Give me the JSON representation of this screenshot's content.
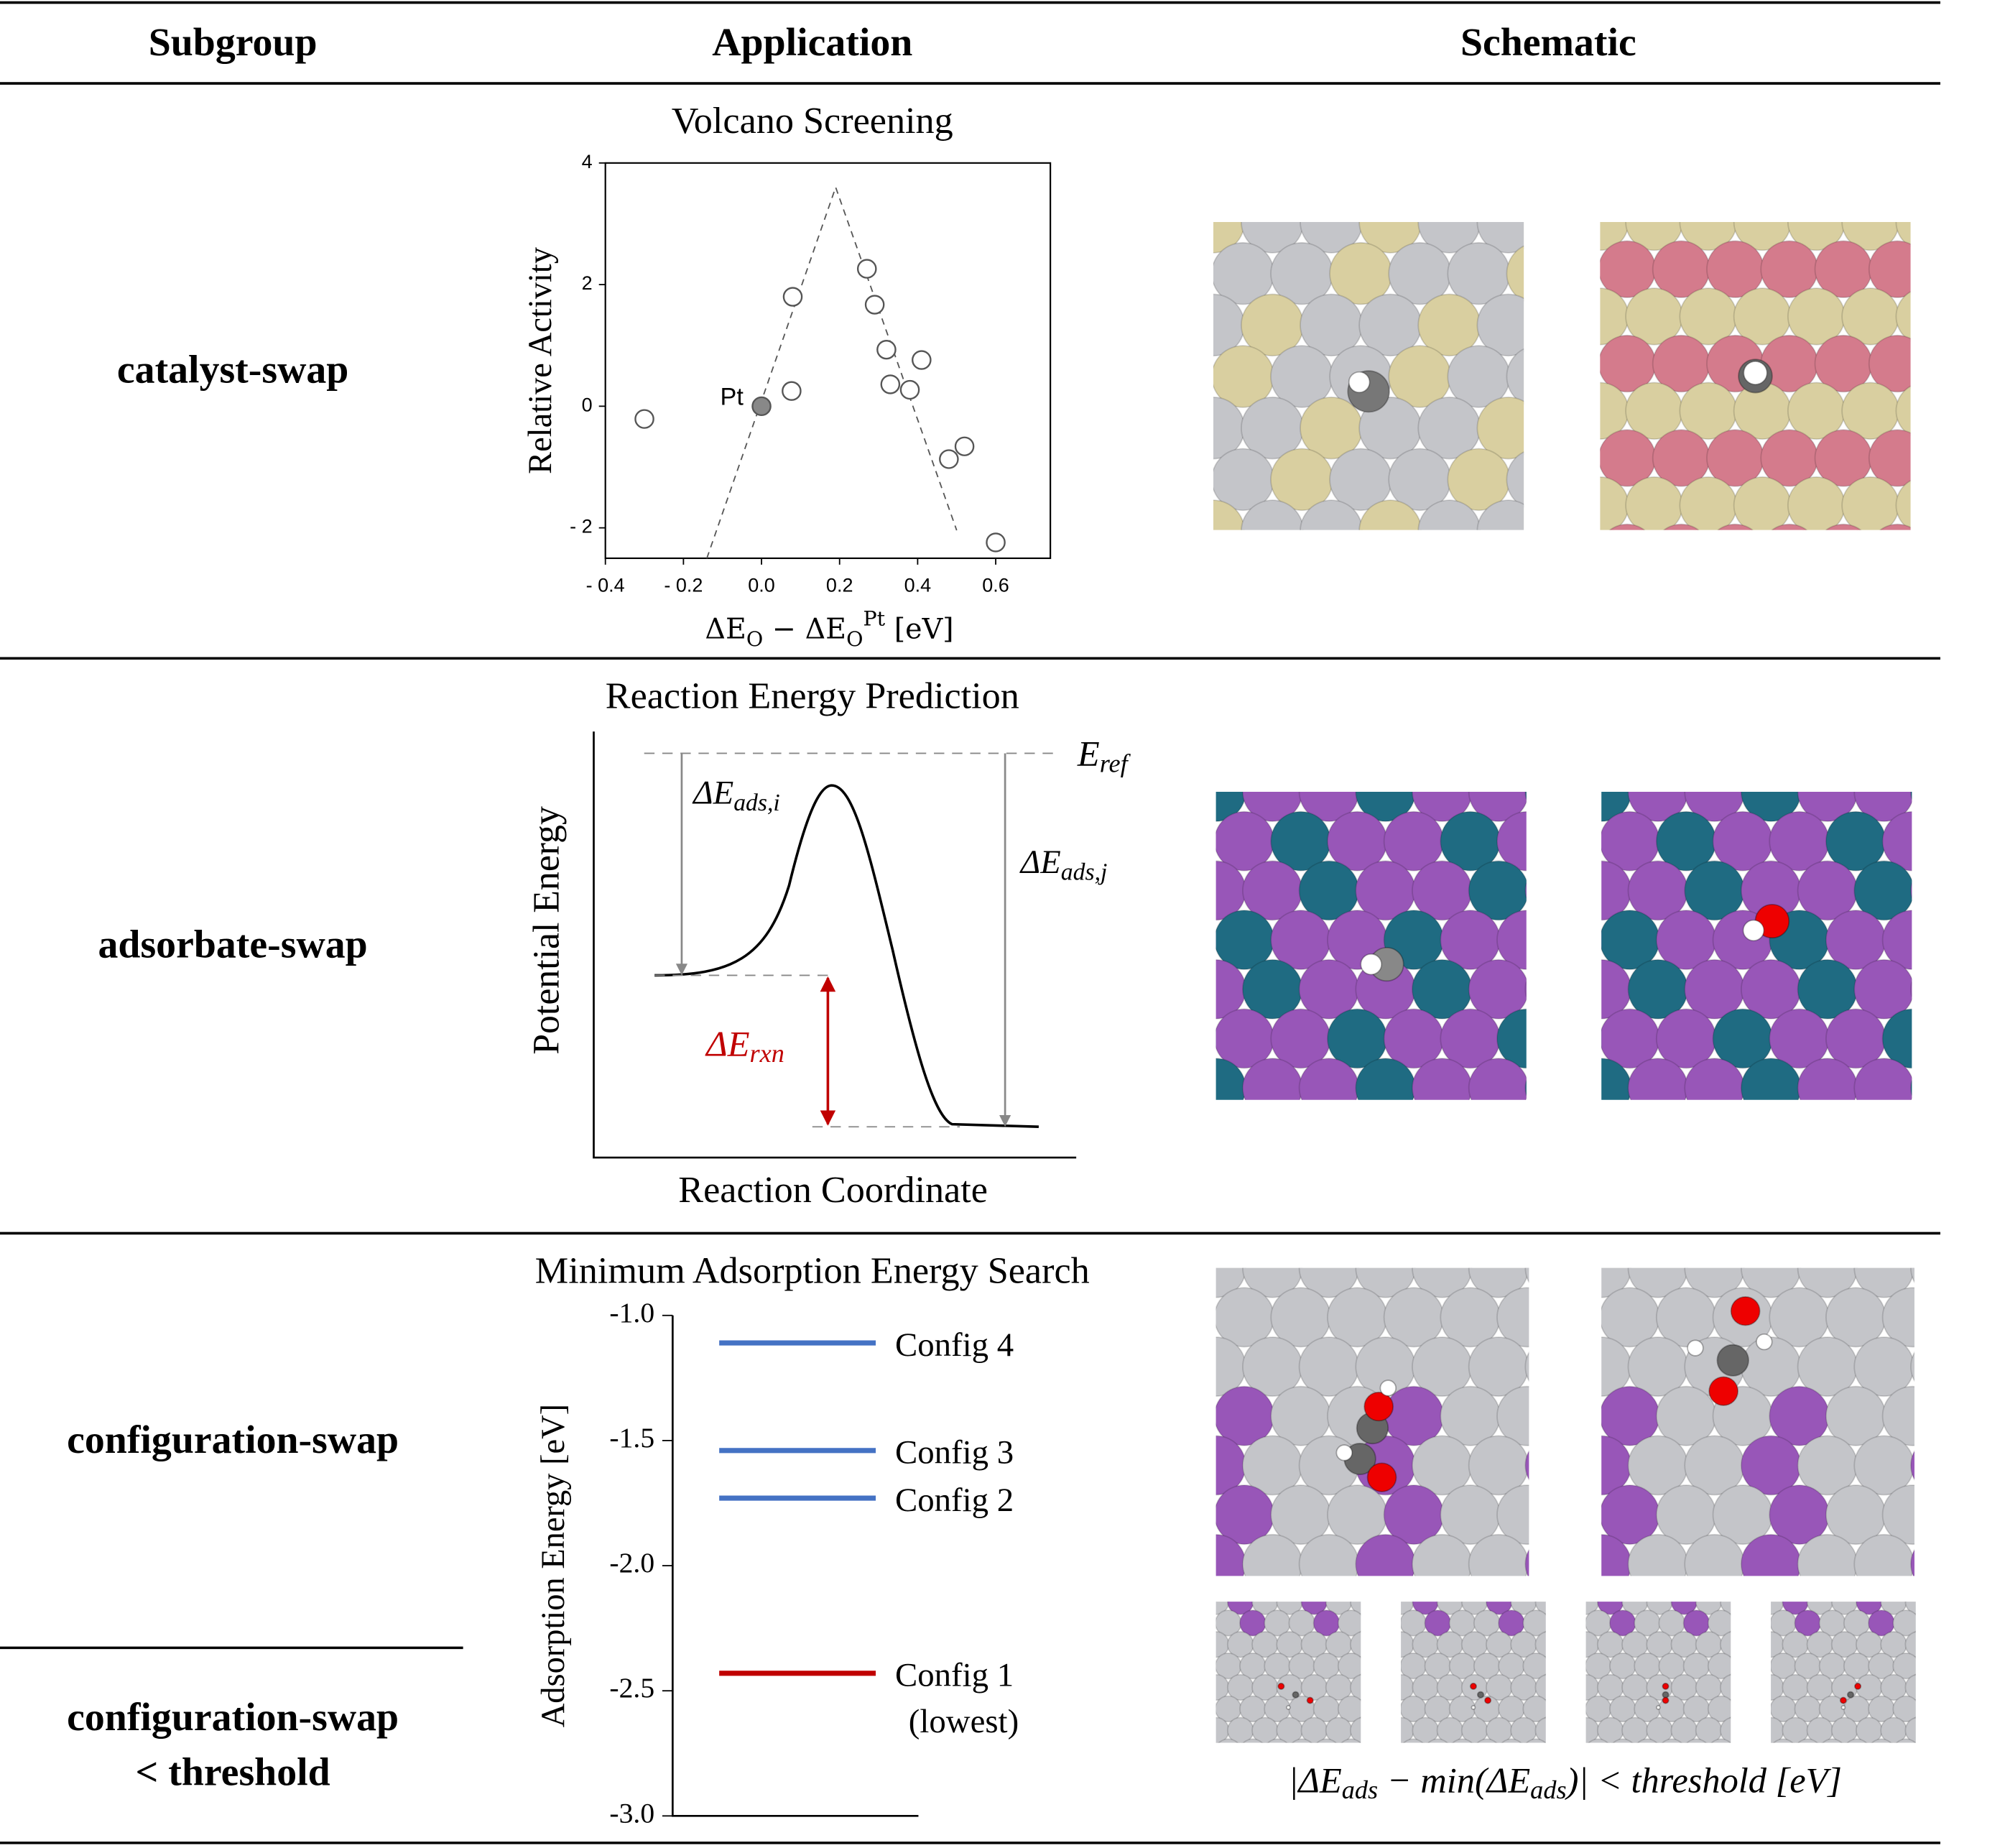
{
  "headers": [
    "Subgroup",
    "Application",
    "Schematic"
  ],
  "subgroups": [
    [
      "catalyst-swap"
    ],
    [
      "adsorbate-swap"
    ],
    [
      "configuration-swap"
    ],
    [
      "configuration-swap",
      "< threshold"
    ]
  ],
  "chart_data": [
    {
      "type": "scatter",
      "title": "Volcano Screening",
      "xlabel": [
        "ΔE",
        "O",
        " − ΔE",
        "O",
        "Pt",
        " [eV]"
      ],
      "ylabel": "Relative Activity",
      "xlim": [
        -0.4,
        0.74
      ],
      "ylim": [
        -2.5,
        4
      ],
      "xticks": [
        {
          "value": -0.4,
          "label": "- 0.4"
        },
        {
          "value": -0.2,
          "label": "- 0.2"
        },
        {
          "value": 0,
          "label": "0.0"
        },
        0.2,
        0.4,
        0.6
      ],
      "yticks": [
        {
          "value": -2,
          "label": "- 2"
        },
        0,
        2,
        4
      ],
      "x": [
        -0.3,
        0.08,
        0.077,
        0.27,
        0.29,
        0.32,
        0.41,
        0.33,
        0.38,
        0.48,
        0.52,
        0.6
      ],
      "y": [
        -0.21,
        1.8,
        0.25,
        2.26,
        1.67,
        0.93,
        0.76,
        0.36,
        0.27,
        -0.87,
        -0.66,
        -2.24
      ],
      "color": "#ffffff",
      "highlight": {
        "label": "Pt",
        "x": 0,
        "y": 0,
        "color": "#888888"
      },
      "trend": {
        "x": [
          -0.14,
          0.19,
          0.5
        ],
        "y": [
          -2.5,
          3.6,
          -2.04
        ]
      }
    },
    {
      "type": "levels",
      "title": "Minimum Adsorption Energy Search",
      "ylabel": "Adsorption Energy [eV]",
      "ylim": [
        -3,
        -1
      ],
      "yticks": [
        {
          "value": -1,
          "label": "-1.0"
        },
        -1.5,
        {
          "value": -2,
          "label": "-2.0"
        },
        -2.5,
        {
          "value": -3,
          "label": "-3.0"
        }
      ],
      "series": [
        {
          "name": "Config 4",
          "color": "#4472c4",
          "values": [
            -1.11
          ]
        },
        {
          "name": "Config 3",
          "color": "#4472c4",
          "values": [
            -1.54
          ]
        },
        {
          "name": "Config 2",
          "color": "#4472c4",
          "values": [
            -1.73
          ]
        },
        {
          "name": "Config 1",
          "color": "#c00000",
          "values": [
            -2.43
          ],
          "note": "(lowest)"
        }
      ]
    }
  ],
  "energy_diagram": {
    "title": "Reaction Energy Prediction",
    "ylabel": "Potential Energy",
    "xlabel": "Reaction Coordinate",
    "e_ref": [
      "E",
      "ref"
    ],
    "de_ads_i": [
      "ΔE",
      "ads,i"
    ],
    "de_ads_j": [
      "ΔE",
      "ads,j"
    ],
    "de_rxn": [
      "ΔE",
      "rxn"
    ]
  },
  "threshold_label": [
    "|ΔE",
    "ads",
    " − min(ΔE",
    "ads",
    ")| < threshold [eV]"
  ]
}
